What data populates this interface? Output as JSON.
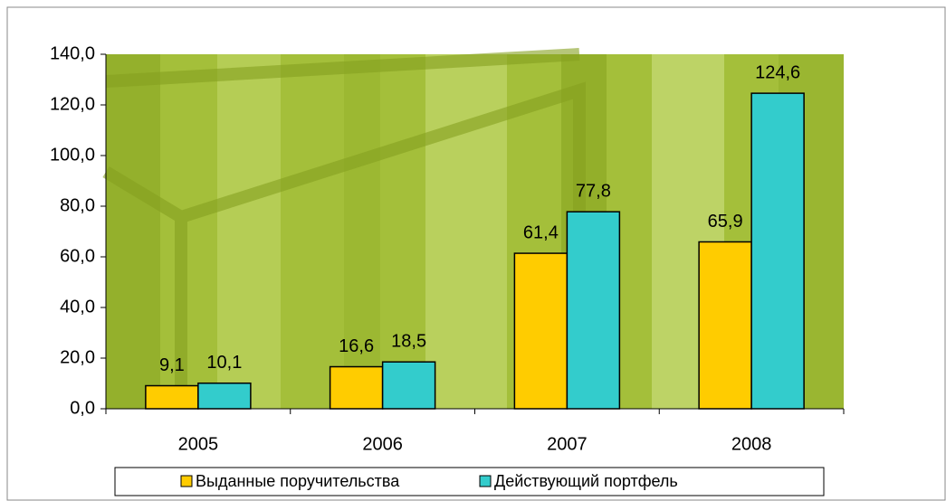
{
  "chart_data": {
    "type": "bar",
    "categories": [
      "2005",
      "2006",
      "2007",
      "2008"
    ],
    "series": [
      {
        "name": "Выданные поручительства",
        "color": "#ffcc00",
        "values": [
          9.1,
          16.6,
          61.4,
          65.9
        ],
        "value_labels": [
          "9,1",
          "16,6",
          "61,4",
          "65,9"
        ]
      },
      {
        "name": "Действующий портфель",
        "color": "#33cccc",
        "values": [
          10.1,
          18.5,
          77.8,
          124.6
        ],
        "value_labels": [
          "10,1",
          "18,5",
          "77,8",
          "124,6"
        ]
      }
    ],
    "ylim": [
      0,
      140
    ],
    "yticks": [
      {
        "value": 0,
        "label": "0,0"
      },
      {
        "value": 20,
        "label": "20,0"
      },
      {
        "value": 40,
        "label": "40,0"
      },
      {
        "value": 60,
        "label": "60,0"
      },
      {
        "value": 80,
        "label": "80,0"
      },
      {
        "value": 100,
        "label": "100,0"
      },
      {
        "value": 120,
        "label": "120,0"
      },
      {
        "value": 140,
        "label": "140,0"
      }
    ],
    "legend": "bottom"
  }
}
